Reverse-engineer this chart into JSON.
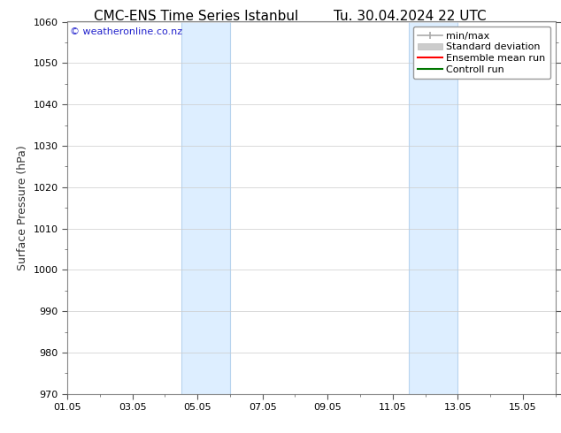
{
  "title_left": "CMC-ENS Time Series Istanbul",
  "title_right": "Tu. 30.04.2024 22 UTC",
  "ylabel": "Surface Pressure (hPa)",
  "xlabel_ticks": [
    "01.05",
    "03.05",
    "05.05",
    "07.05",
    "09.05",
    "11.05",
    "13.05",
    "15.05"
  ],
  "xlabel_tick_positions": [
    0,
    2,
    4,
    6,
    8,
    10,
    12,
    14
  ],
  "ylim": [
    970,
    1060
  ],
  "yticks": [
    970,
    980,
    990,
    1000,
    1010,
    1020,
    1030,
    1040,
    1050,
    1060
  ],
  "background_color": "#ffffff",
  "plot_bg_color": "#ffffff",
  "watermark": "© weatheronline.co.nz",
  "watermark_color": "#2222cc",
  "shaded_regions": [
    {
      "x_start": 3.5,
      "x_end": 5.0,
      "color": "#ddeeff"
    },
    {
      "x_start": 10.5,
      "x_end": 12.0,
      "color": "#ddeeff"
    }
  ],
  "shaded_border_color": "#b8d4ee",
  "grid_color": "#cccccc",
  "title_fontsize": 11,
  "tick_fontsize": 8,
  "legend_fontsize": 8,
  "ylabel_fontsize": 9,
  "watermark_fontsize": 8,
  "border_color": "#888888",
  "x_min": 0,
  "x_max": 15
}
